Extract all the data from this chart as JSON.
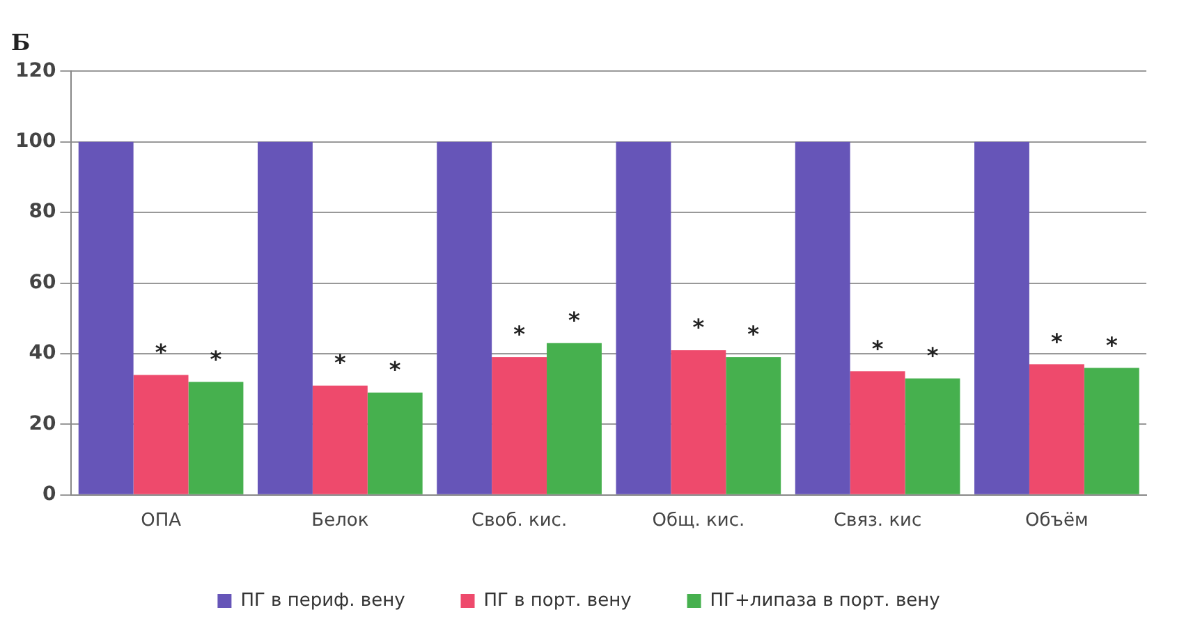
{
  "chart_data": {
    "type": "bar",
    "title": "Б",
    "categories": [
      "ОПА",
      "Белок",
      "Своб. кис.",
      "Общ. кис.",
      "Связ. кис",
      "Объём"
    ],
    "series": [
      {
        "name": "ПГ в периф. вену",
        "color": "#6655b8",
        "values": [
          100,
          100,
          100,
          100,
          100,
          100
        ]
      },
      {
        "name": "ПГ в порт. вену",
        "color": "#ee4a6c",
        "values": [
          34,
          31,
          39,
          41,
          35,
          37
        ]
      },
      {
        "name": "ПГ+липаза в порт. вену",
        "color": "#46b04e",
        "values": [
          32,
          29,
          43,
          39,
          33,
          36
        ]
      }
    ],
    "annotations": [
      "*",
      "*",
      "*",
      "*",
      "*",
      "*",
      "*",
      "*",
      "*",
      "*",
      "*",
      "*"
    ],
    "ylim": [
      0,
      120
    ],
    "yticks": [
      0,
      20,
      40,
      60,
      80,
      100,
      120
    ],
    "grid": "y",
    "legend": "bottom"
  }
}
